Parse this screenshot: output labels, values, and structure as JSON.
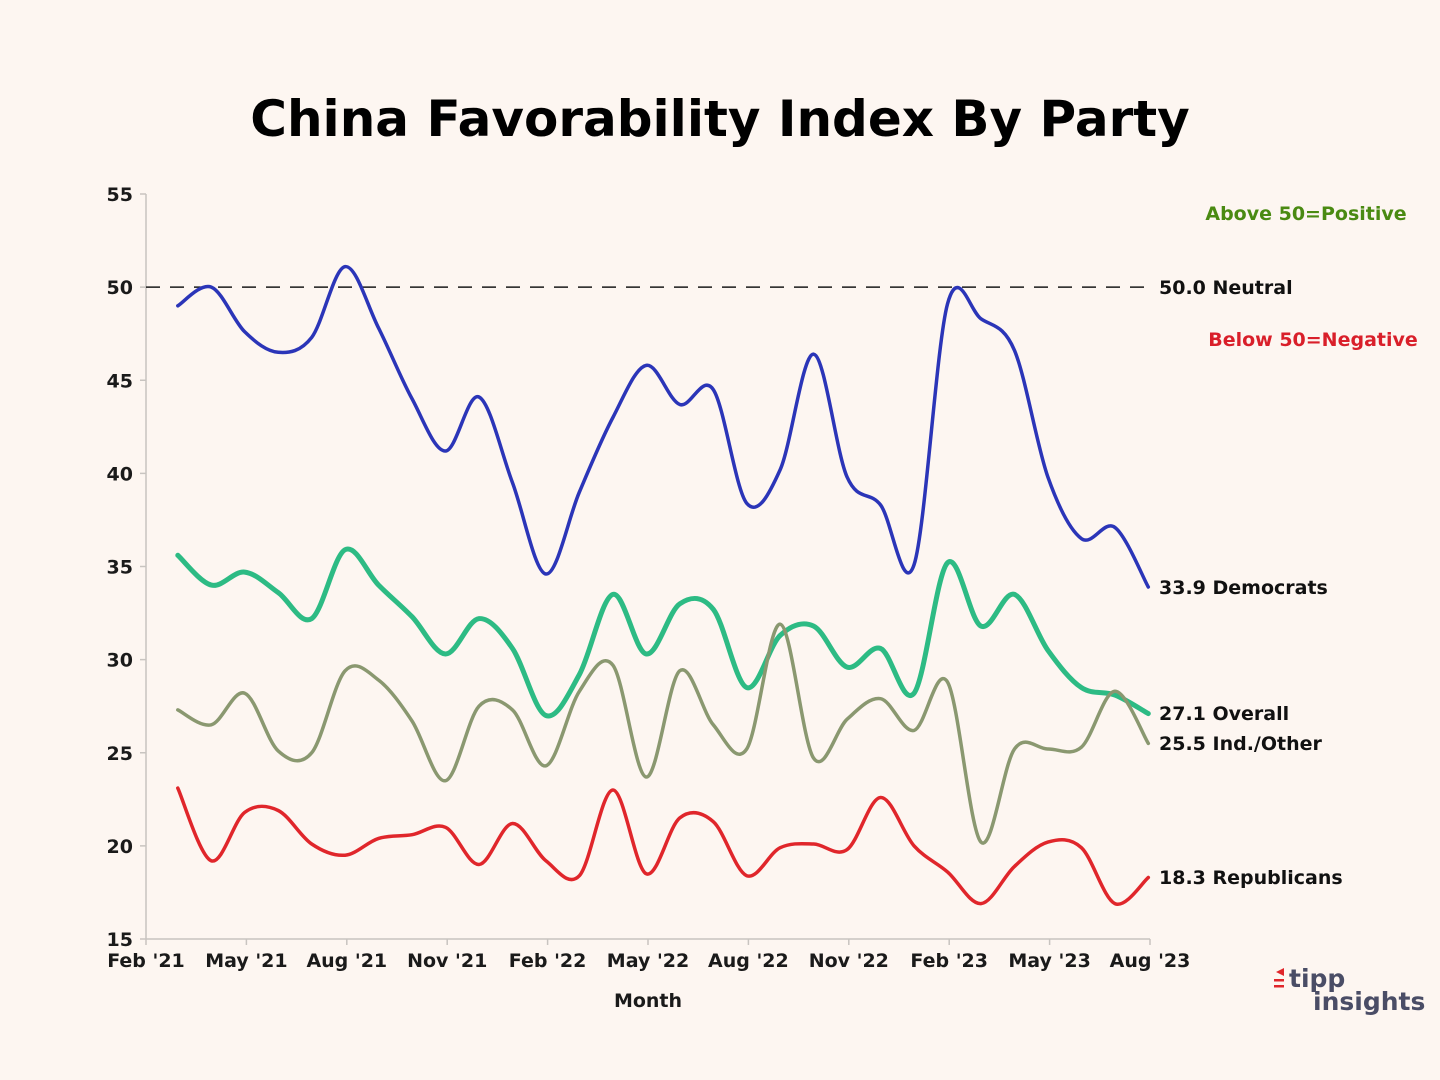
{
  "colors": {
    "background": "#fdf6f1",
    "democrats": "#2b35b8",
    "overall": "#2dbb84",
    "independents": "#8a9870",
    "republicans": "#e0262b",
    "positive_note": "#4a8a12",
    "negative_note": "#d91f2a",
    "logo_accent": "#e0262b",
    "logo_text": "#4a4d66"
  },
  "notes": {
    "positive": "Above 50=Positive",
    "negative": "Below 50=Negative"
  },
  "logo": {
    "line1": "tipp",
    "line2": "insights"
  },
  "chart_data": {
    "type": "line",
    "title": "China Favorability Index By Party",
    "xlabel": "Month",
    "ylabel": "",
    "ylim": [
      15,
      55
    ],
    "yticks": [
      15,
      20,
      25,
      30,
      35,
      40,
      45,
      50,
      55
    ],
    "x_range_months": [
      0,
      30
    ],
    "xticks": [
      {
        "m": 0,
        "label": "Feb '21"
      },
      {
        "m": 3,
        "label": "May '21"
      },
      {
        "m": 6,
        "label": "Aug '21"
      },
      {
        "m": 9,
        "label": "Nov '21"
      },
      {
        "m": 12,
        "label": "Feb '22"
      },
      {
        "m": 15,
        "label": "May '22"
      },
      {
        "m": 18,
        "label": "Aug '22"
      },
      {
        "m": 21,
        "label": "Nov '22"
      },
      {
        "m": 24,
        "label": "Feb '23"
      },
      {
        "m": 27,
        "label": "May '23"
      },
      {
        "m": 30,
        "label": "Aug '23"
      }
    ],
    "grid": false,
    "reference_line": {
      "value": 50,
      "label": "50.0 Neutral",
      "style": "dashed"
    },
    "x": [
      0.95,
      1.95,
      2.95,
      3.95,
      4.95,
      5.95,
      6.95,
      7.95,
      8.95,
      9.95,
      10.95,
      11.95,
      12.95,
      13.95,
      14.95,
      15.95,
      16.95,
      17.95,
      18.95,
      19.95,
      20.95,
      21.95,
      22.95,
      23.95,
      24.95,
      25.95,
      26.95,
      27.95,
      28.95,
      29.95
    ],
    "series": [
      {
        "name": "Democrats",
        "color_key": "democrats",
        "width": 3.5,
        "end_label": "33.9 Democrats",
        "values": [
          49.0,
          50.0,
          47.6,
          46.5,
          47.3,
          51.1,
          47.8,
          44.0,
          41.2,
          44.1,
          39.5,
          34.6,
          39.0,
          43.0,
          45.8,
          43.7,
          44.5,
          38.4,
          40.2,
          46.4,
          39.8,
          38.3,
          35.1,
          49.1,
          48.3,
          46.6,
          39.8,
          36.5,
          37.1,
          33.9
        ]
      },
      {
        "name": "Overall",
        "color_key": "overall",
        "width": 5,
        "end_label": "27.1 Overall",
        "values": [
          35.6,
          34.0,
          34.7,
          33.6,
          32.2,
          35.9,
          34.0,
          32.3,
          30.3,
          32.2,
          30.6,
          27.0,
          29.2,
          33.5,
          30.3,
          33.0,
          32.7,
          28.5,
          31.3,
          31.8,
          29.6,
          30.6,
          28.2,
          35.2,
          31.8,
          33.5,
          30.5,
          28.5,
          28.1,
          27.1
        ]
      },
      {
        "name": "Ind./Other",
        "color_key": "independents",
        "width": 3.5,
        "end_label": "25.5 Ind./Other",
        "values": [
          27.3,
          26.5,
          28.2,
          25.1,
          25.0,
          29.4,
          28.9,
          26.7,
          23.5,
          27.5,
          27.3,
          24.3,
          28.3,
          29.7,
          23.7,
          29.4,
          26.5,
          25.2,
          31.9,
          24.7,
          26.8,
          27.9,
          26.2,
          28.8,
          20.2,
          25.2,
          25.2,
          25.3,
          28.3,
          25.5
        ]
      },
      {
        "name": "Republicans",
        "color_key": "republicans",
        "width": 3.5,
        "end_label": "18.3 Republicans",
        "values": [
          23.1,
          19.2,
          21.8,
          21.9,
          20.1,
          19.5,
          20.4,
          20.6,
          21.0,
          19.0,
          21.2,
          19.2,
          18.4,
          23.0,
          18.5,
          21.5,
          21.3,
          18.4,
          19.9,
          20.1,
          19.8,
          22.6,
          20.0,
          18.6,
          16.9,
          18.9,
          20.2,
          19.9,
          16.9,
          18.3
        ]
      }
    ]
  }
}
